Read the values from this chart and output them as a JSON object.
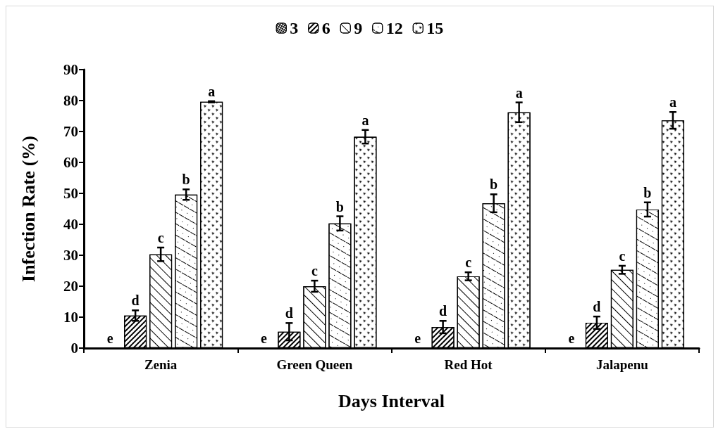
{
  "chart_data": {
    "type": "bar",
    "xlabel": "Days Interval",
    "ylabel": "Infection Rate (%)",
    "categories": [
      "Zenia",
      "Green Queen",
      "Red Hot",
      "Jalapenu"
    ],
    "series": [
      {
        "name": "3",
        "color": "#000000",
        "values": [
          0,
          0,
          0,
          0
        ],
        "errors": [
          0,
          0,
          0,
          0
        ],
        "value_labels": [
          "e",
          "e",
          "e",
          "e"
        ]
      },
      {
        "name": "6",
        "color": "#ffffff",
        "values": [
          10.5,
          5.3,
          6.8,
          8.2
        ],
        "errors": [
          1.7,
          2.8,
          2,
          2
        ],
        "value_labels": [
          "d",
          "d",
          "d",
          "d"
        ]
      },
      {
        "name": "9",
        "color": "#ffffff",
        "values": [
          30.3,
          20,
          23.2,
          25.3
        ],
        "errors": [
          2.2,
          1.8,
          1.3,
          1.3
        ],
        "value_labels": [
          "c",
          "c",
          "c",
          "c"
        ]
      },
      {
        "name": "12",
        "color": "#ffffff",
        "values": [
          49.6,
          40.3,
          46.8,
          44.8
        ],
        "errors": [
          1.7,
          2.3,
          2.9,
          2.3
        ],
        "value_labels": [
          "b",
          "b",
          "b",
          "b"
        ]
      },
      {
        "name": "15",
        "color": "#ffffff",
        "values": [
          79.6,
          68.3,
          76.2,
          73.6
        ],
        "errors": [
          0.2,
          2.2,
          3.2,
          2.7
        ],
        "value_labels": [
          "a",
          "a",
          "a",
          "a"
        ]
      }
    ],
    "ylim": [
      0,
      90
    ],
    "yticks": [
      0,
      10,
      20,
      30,
      40,
      50,
      60,
      70,
      80,
      90
    ],
    "grid": false,
    "legend": "top"
  }
}
